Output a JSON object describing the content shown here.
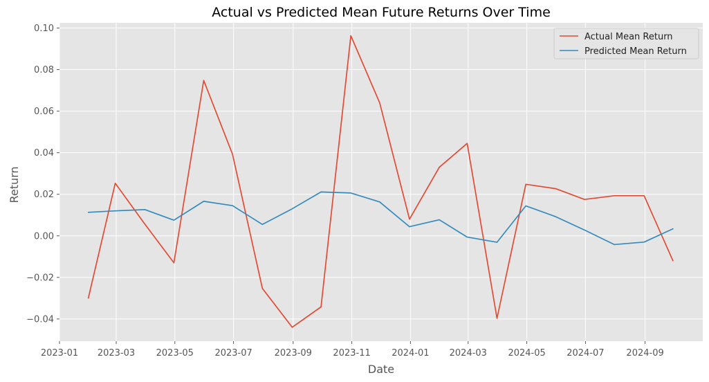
{
  "chart_data": {
    "type": "line",
    "title": "Actual vs Predicted Mean Future Returns Over Time",
    "xlabel": "Date",
    "ylabel": "Return",
    "x_tick_labels": [
      "2023-01",
      "2023-03",
      "2023-05",
      "2023-07",
      "2023-09",
      "2023-11",
      "2024-01",
      "2024-03",
      "2024-05",
      "2024-07",
      "2024-09"
    ],
    "x_tick_dates": [
      "2023-01-01",
      "2023-03-01",
      "2023-05-01",
      "2023-07-01",
      "2023-09-01",
      "2023-11-01",
      "2024-01-01",
      "2024-03-01",
      "2024-05-01",
      "2024-07-01",
      "2024-09-01"
    ],
    "y_ticks": [
      -0.04,
      -0.02,
      0.0,
      0.02,
      0.04,
      0.06,
      0.08,
      0.1
    ],
    "y_tick_labels": [
      "−0.04",
      "−0.02",
      "0.00",
      "0.02",
      "0.04",
      "0.06",
      "0.08",
      "0.10"
    ],
    "xlim": [
      "2023-01-01",
      "2024-10-31"
    ],
    "ylim": [
      -0.0507,
      0.1025
    ],
    "grid": true,
    "legend_position": "top-right",
    "x": [
      "2023-01-31",
      "2023-02-28",
      "2023-03-31",
      "2023-04-30",
      "2023-05-31",
      "2023-06-30",
      "2023-07-31",
      "2023-08-31",
      "2023-09-30",
      "2023-10-31",
      "2023-11-30",
      "2023-12-31",
      "2024-01-31",
      "2024-02-29",
      "2024-03-31",
      "2024-04-30",
      "2024-05-31",
      "2024-06-30",
      "2024-07-31",
      "2024-08-31",
      "2024-09-30"
    ],
    "series": [
      {
        "name": "Actual Mean Return",
        "color": "#E24A33",
        "values": [
          -0.03,
          0.0253,
          0.0055,
          -0.013,
          0.0748,
          0.0392,
          -0.0253,
          -0.044,
          -0.0342,
          0.0963,
          0.064,
          0.008,
          0.033,
          0.0445,
          -0.0397,
          0.0248,
          0.0227,
          0.0175,
          0.0193,
          0.0193,
          -0.012
        ]
      },
      {
        "name": "Predicted Mean Return",
        "color": "#348ABD",
        "values": [
          0.0113,
          0.012,
          0.0126,
          0.0075,
          0.0166,
          0.0145,
          0.0055,
          0.013,
          0.0211,
          0.0206,
          0.0163,
          0.0044,
          0.0077,
          -0.0006,
          -0.0031,
          0.0144,
          0.0092,
          0.0028,
          -0.0042,
          -0.003,
          0.0034
        ]
      }
    ]
  }
}
